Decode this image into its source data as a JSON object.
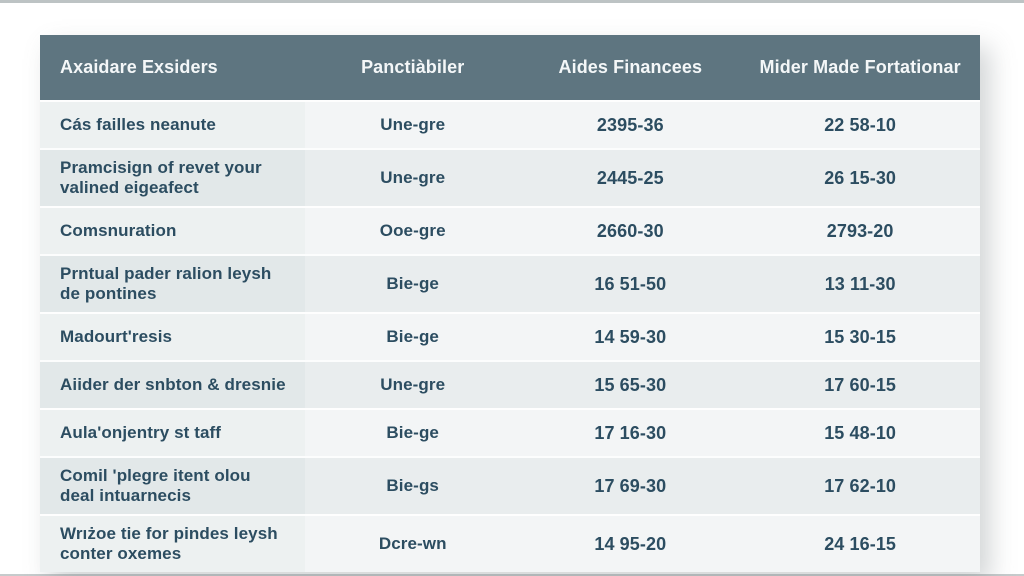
{
  "page": {
    "background": "#ffffff",
    "frame_color": "#bdc3c4"
  },
  "chart_data": {
    "type": "table",
    "columns": [
      "Axaidare Exsiders",
      "Panctiàbiler",
      "Aides Financees",
      "Mider Made Fortationar"
    ],
    "rows": [
      [
        "Cás failles neanute",
        "Une-gre",
        "2395-36",
        "22 58-10"
      ],
      [
        "Pramcisign of revet your valined eigeafect",
        "Une-gre",
        "2445-25",
        "26 15-30"
      ],
      [
        "Comsnuration",
        "Ooe-gre",
        "2660-30",
        "2793-20"
      ],
      [
        "Prntual pader ralion leysh de pontines",
        "Bie-ge",
        "16 51-50",
        "13 11-30"
      ],
      [
        "Madourt'resis",
        "Bie-ge",
        "14 59-30",
        "15 30-15"
      ],
      [
        "Aiider der snbton & dresnie",
        "Une-gre",
        "15 65-30",
        "17 60-15"
      ],
      [
        "Aula'onjentry st taff",
        "Bie-ge",
        "17 16-30",
        "15 48-10"
      ],
      [
        "Comil 'plegre itent olou deal intuarnecis",
        "Bie-gs",
        "17 69-30",
        "17 62-10"
      ],
      [
        "Wrıżoe tie for pindes leysh conter oxemes",
        "Dcre-wn",
        "14 95-20",
        "24 16-15"
      ]
    ],
    "layout": {
      "legend": "none",
      "grid": "zebra-rows",
      "header_position": "top"
    },
    "colors": {
      "header_bg": "#5e7580",
      "header_text": "#f4f7f8",
      "body_text": "#2c4d61",
      "row_light": "#f3f5f6",
      "row_dark": "#e9edee",
      "first_col_light": "#edf1f1",
      "first_col_dark": "#e2e8e9"
    }
  }
}
